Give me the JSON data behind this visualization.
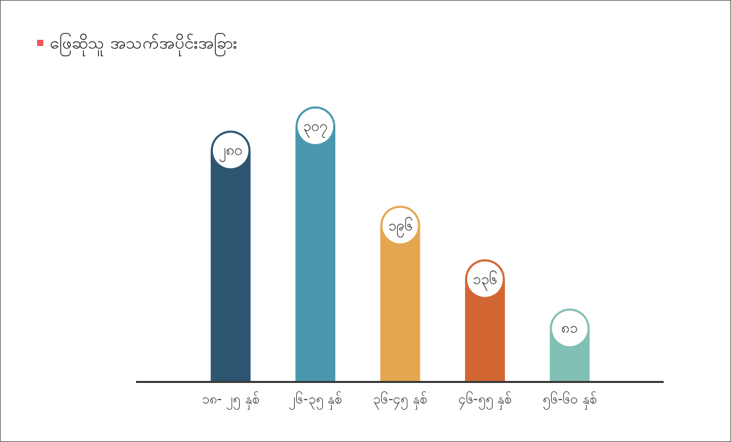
{
  "chart_data": {
    "type": "bar",
    "title": "ဖြေဆိုသူ အသက်အပိုင်းအခြား",
    "categories": [
      "၁၈- ၂၅ နှစ်",
      "၂၆-၃၅ နှစ်",
      "၃၆-၄၅ နှစ်",
      "၄၆-၅၅ နှစ်",
      "၅၆-၆၀ နှစ်"
    ],
    "values": [
      280,
      307,
      196,
      136,
      81
    ],
    "colors": [
      "#2d5470",
      "#4a98ae",
      "#e5a651",
      "#d26633",
      "#80bfb3"
    ],
    "value_labels": [
      "၂၈၀",
      "၃၀၇",
      "၁၉၆",
      "၁၃၆",
      "၈၁"
    ]
  }
}
